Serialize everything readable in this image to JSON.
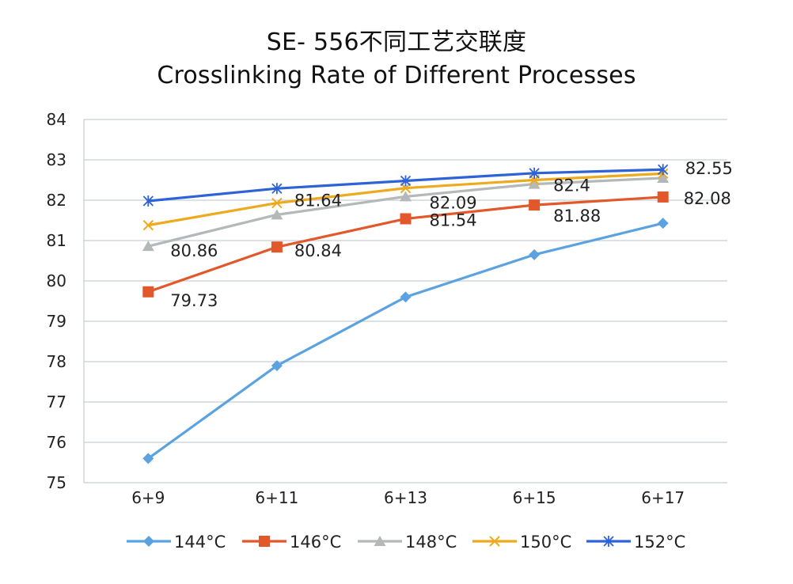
{
  "chart_data": {
    "type": "line",
    "title": "SE- 556不同工艺交联度",
    "subtitle": "Crosslinking Rate of Different Processes",
    "xlabel": "",
    "ylabel": "",
    "categories": [
      "6+9",
      "6+11",
      "6+13",
      "6+15",
      "6+17"
    ],
    "ylim": [
      75,
      84
    ],
    "yticks": [
      75,
      76,
      77,
      78,
      79,
      80,
      81,
      82,
      83,
      84
    ],
    "grid": true,
    "legend_position": "bottom",
    "series": [
      {
        "name": "144°C",
        "color": "#5aa3e0",
        "marker": "diamond",
        "values": [
          75.6,
          77.9,
          79.6,
          80.65,
          81.43
        ],
        "labels": []
      },
      {
        "name": "146°C",
        "color": "#e2582a",
        "marker": "square",
        "values": [
          79.73,
          80.84,
          81.54,
          81.88,
          82.08
        ],
        "labels": [
          {
            "index": 0,
            "text": "79.73"
          },
          {
            "index": 1,
            "text": "80.84"
          },
          {
            "index": 2,
            "text": "81.54"
          },
          {
            "index": 3,
            "text": "81.88"
          },
          {
            "index": 4,
            "text": "82.08"
          }
        ]
      },
      {
        "name": "148°C",
        "color": "#b4b8b9",
        "marker": "triangle",
        "values": [
          80.86,
          81.64,
          82.09,
          82.4,
          82.55
        ],
        "labels": [
          {
            "index": 0,
            "text": "80.86"
          },
          {
            "index": 1,
            "text": "81.64"
          },
          {
            "index": 2,
            "text": "82.09"
          },
          {
            "index": 3,
            "text": "82.4"
          },
          {
            "index": 4,
            "text": "82.55"
          }
        ]
      },
      {
        "name": "150°C",
        "color": "#eeaa1e",
        "marker": "x",
        "values": [
          81.38,
          81.93,
          82.3,
          82.5,
          82.66
        ],
        "labels": []
      },
      {
        "name": "152°C",
        "color": "#2d63d6",
        "marker": "star",
        "values": [
          81.98,
          82.29,
          82.48,
          82.67,
          82.76
        ],
        "labels": []
      }
    ]
  }
}
